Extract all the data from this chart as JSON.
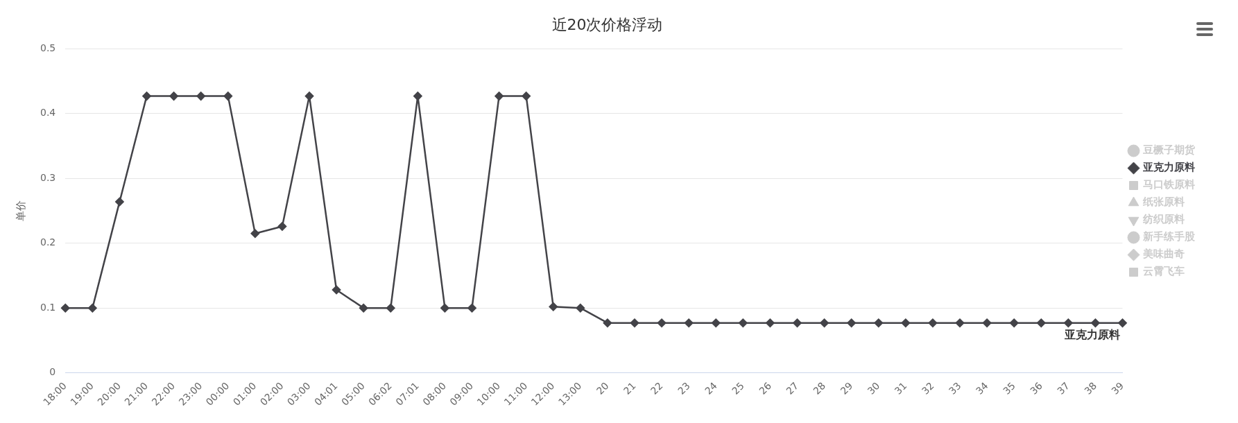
{
  "chart_data": {
    "type": "line",
    "title": "近20次价格浮动",
    "ylabel": "单价",
    "categories": [
      "18:00",
      "19:00",
      "20:00",
      "21:00",
      "22:00",
      "23:00",
      "00:00",
      "01:00",
      "02:00",
      "03:00",
      "04:01",
      "05:00",
      "06:02",
      "07:01",
      "08:00",
      "09:00",
      "10:00",
      "11:00",
      "12:00",
      "13:00",
      "20",
      "21",
      "22",
      "23",
      "24",
      "25",
      "26",
      "27",
      "28",
      "29",
      "30",
      "31",
      "32",
      "33",
      "34",
      "35",
      "36",
      "37",
      "38",
      "39"
    ],
    "series": [
      {
        "name": "豆橛子期货",
        "color": "#cccccc",
        "marker": "circle",
        "values": [
          null,
          null,
          null,
          null,
          null,
          null,
          null,
          null,
          null,
          null,
          null,
          null,
          null,
          null,
          null,
          null,
          null,
          null,
          null,
          null,
          null,
          null,
          null,
          null,
          null,
          null,
          null,
          null,
          null,
          null,
          null,
          null,
          null,
          null,
          null,
          null,
          null,
          null,
          null,
          null
        ]
      },
      {
        "name": "亚克力原料",
        "color": "#434348",
        "marker": "diamond",
        "values": [
          0.1,
          0.1,
          0.264,
          0.427,
          0.427,
          0.427,
          0.427,
          0.215,
          0.226,
          0.427,
          0.128,
          0.1,
          0.1,
          0.427,
          0.1,
          0.1,
          0.427,
          0.427,
          0.102,
          0.1,
          0.077,
          0.077,
          0.077,
          0.077,
          0.077,
          0.077,
          0.077,
          0.077,
          0.077,
          0.077,
          0.077,
          0.077,
          0.077,
          0.077,
          0.077,
          0.077,
          0.077,
          0.077,
          0.077,
          0.077
        ]
      },
      {
        "name": "马口铁原料",
        "color": "#cccccc",
        "marker": "square",
        "values": [
          null,
          null,
          null,
          null,
          null,
          null,
          null,
          null,
          null,
          null,
          null,
          null,
          null,
          null,
          null,
          null,
          null,
          null,
          null,
          null,
          null,
          null,
          null,
          null,
          null,
          null,
          null,
          null,
          null,
          null,
          null,
          null,
          null,
          null,
          null,
          null,
          null,
          null,
          null,
          null
        ]
      },
      {
        "name": "纸张原料",
        "color": "#cccccc",
        "marker": "triangle",
        "values": [
          null,
          null,
          null,
          null,
          null,
          null,
          null,
          null,
          null,
          null,
          null,
          null,
          null,
          null,
          null,
          null,
          null,
          null,
          null,
          null,
          null,
          null,
          null,
          null,
          null,
          null,
          null,
          null,
          null,
          null,
          null,
          null,
          null,
          null,
          null,
          null,
          null,
          null,
          null,
          null
        ]
      },
      {
        "name": "纺织原料",
        "color": "#cccccc",
        "marker": "triangle-down",
        "values": [
          null,
          null,
          null,
          null,
          null,
          null,
          null,
          null,
          null,
          null,
          null,
          null,
          null,
          null,
          null,
          null,
          null,
          null,
          null,
          null,
          null,
          null,
          null,
          null,
          null,
          null,
          null,
          null,
          null,
          null,
          null,
          null,
          null,
          null,
          null,
          null,
          null,
          null,
          null,
          null
        ]
      },
      {
        "name": "新手练手股",
        "color": "#cccccc",
        "marker": "circle",
        "values": [
          null,
          null,
          null,
          null,
          null,
          null,
          null,
          null,
          null,
          null,
          null,
          null,
          null,
          null,
          null,
          null,
          null,
          null,
          null,
          null,
          null,
          null,
          null,
          null,
          null,
          null,
          null,
          null,
          null,
          null,
          null,
          null,
          null,
          null,
          null,
          null,
          null,
          null,
          null,
          null
        ]
      },
      {
        "name": "美味曲奇",
        "color": "#cccccc",
        "marker": "diamond",
        "values": [
          null,
          null,
          null,
          null,
          null,
          null,
          null,
          null,
          null,
          null,
          null,
          null,
          null,
          null,
          null,
          null,
          null,
          null,
          null,
          null,
          null,
          null,
          null,
          null,
          null,
          null,
          null,
          null,
          null,
          null,
          null,
          null,
          null,
          null,
          null,
          null,
          null,
          null,
          null,
          null
        ]
      },
      {
        "name": "云霄飞车",
        "color": "#cccccc",
        "marker": "square",
        "values": [
          null,
          null,
          null,
          null,
          null,
          null,
          null,
          null,
          null,
          null,
          null,
          null,
          null,
          null,
          null,
          null,
          null,
          null,
          null,
          null,
          null,
          null,
          null,
          null,
          null,
          null,
          null,
          null,
          null,
          null,
          null,
          null,
          null,
          null,
          null,
          null,
          null,
          null,
          null,
          null
        ]
      }
    ],
    "ylim": [
      0,
      0.5
    ],
    "yticks": [
      0,
      0.1,
      0.2,
      0.3,
      0.4,
      0.5
    ],
    "grid": "y",
    "legend": "right",
    "line_style": "solid"
  }
}
